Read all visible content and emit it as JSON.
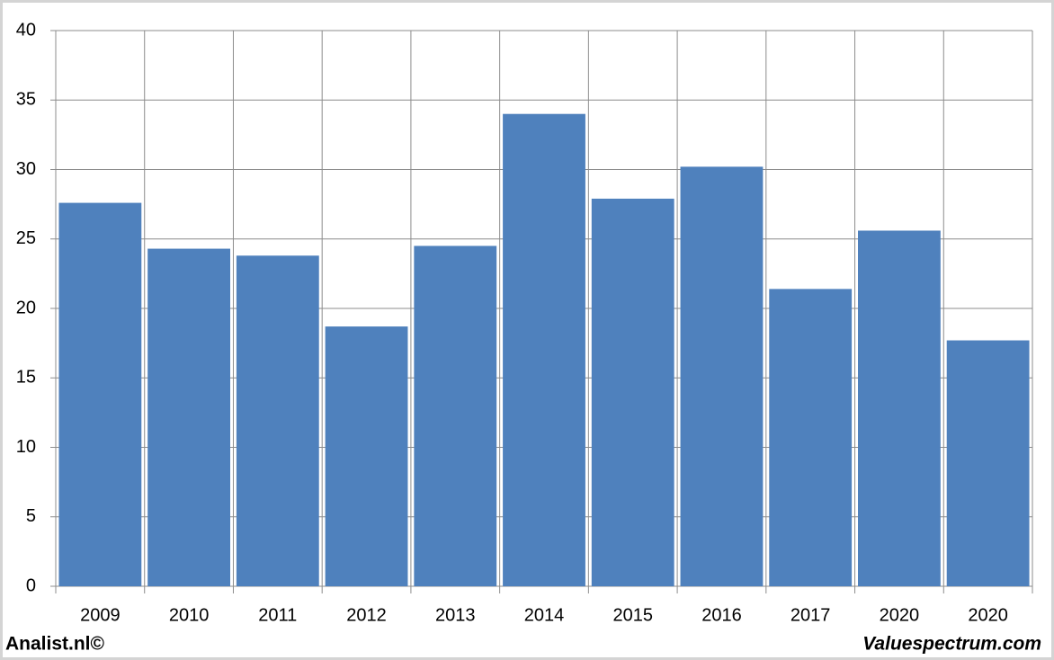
{
  "chart_data": {
    "type": "bar",
    "categories": [
      "2009",
      "2010",
      "2011",
      "2012",
      "2013",
      "2014",
      "2015",
      "2016",
      "2017",
      "2020",
      "2020"
    ],
    "values": [
      27.6,
      24.3,
      23.8,
      18.7,
      24.5,
      34.0,
      27.9,
      30.2,
      21.4,
      25.6,
      17.7
    ],
    "color": "#4f81bd",
    "ylim": [
      0,
      40
    ],
    "yticks": [
      0,
      5,
      10,
      15,
      20,
      25,
      30,
      35,
      40
    ],
    "grid": true
  },
  "footer": {
    "left": "Analist.nl©",
    "right": "Valuespectrum.com"
  }
}
